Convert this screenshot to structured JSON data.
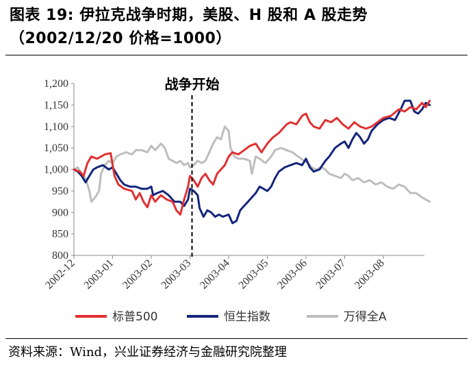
{
  "title_line1": "图表 19: 伊拉克战争时期，美股、H 股和 A 股走势",
  "title_line2": "（2002/12/20 价格=1000）",
  "source": "资料来源：Wind，兴业证券经济与金融研究院整理",
  "colors": {
    "sp500": "#e03030",
    "hsi": "#12247a",
    "wanda": "#bdbdbd"
  },
  "chart_data": {
    "type": "line",
    "x_unit": "months since 2002-12",
    "x_range": [
      0,
      9.3
    ],
    "ylim": [
      800,
      1200
    ],
    "yticks": [
      800,
      850,
      900,
      950,
      1000,
      1050,
      1100,
      1150,
      1200
    ],
    "ytick_labels": [
      "800",
      "850",
      "900",
      "950",
      "1,000",
      "1,050",
      "1,100",
      "1,150",
      "1,200"
    ],
    "xticks": [
      0,
      1,
      2,
      3,
      4,
      5,
      6,
      7,
      8
    ],
    "xtick_labels": [
      "2002-12",
      "2003-01",
      "2003-02",
      "2003-03",
      "2003-04",
      "2003-05",
      "2003-06",
      "2003-07",
      "2003-08"
    ],
    "annotation": {
      "text": "战争开始",
      "x": 3.0
    },
    "legend_position": "bottom",
    "grid": false,
    "series": [
      {
        "name": "标普500",
        "color": "#e03030",
        "points": [
          [
            0,
            1000
          ],
          [
            0.15,
            995
          ],
          [
            0.25,
            985
          ],
          [
            0.35,
            1015
          ],
          [
            0.45,
            1030
          ],
          [
            0.6,
            1025
          ],
          [
            0.8,
            1035
          ],
          [
            0.95,
            1038
          ],
          [
            1.05,
            985
          ],
          [
            1.15,
            965
          ],
          [
            1.3,
            955
          ],
          [
            1.5,
            950
          ],
          [
            1.6,
            930
          ],
          [
            1.7,
            945
          ],
          [
            1.8,
            925
          ],
          [
            1.9,
            912
          ],
          [
            2.0,
            940
          ],
          [
            2.1,
            925
          ],
          [
            2.25,
            940
          ],
          [
            2.4,
            930
          ],
          [
            2.55,
            925
          ],
          [
            2.65,
            905
          ],
          [
            2.75,
            895
          ],
          [
            2.85,
            930
          ],
          [
            2.95,
            960
          ],
          [
            3.0,
            985
          ],
          [
            3.1,
            975
          ],
          [
            3.2,
            960
          ],
          [
            3.3,
            980
          ],
          [
            3.4,
            990
          ],
          [
            3.5,
            975
          ],
          [
            3.6,
            965
          ],
          [
            3.7,
            990
          ],
          [
            3.8,
            1000
          ],
          [
            3.9,
            1010
          ],
          [
            4.0,
            1030
          ],
          [
            4.1,
            1040
          ],
          [
            4.25,
            1035
          ],
          [
            4.4,
            1045
          ],
          [
            4.55,
            1055
          ],
          [
            4.7,
            1060
          ],
          [
            4.85,
            1040
          ],
          [
            5.0,
            1060
          ],
          [
            5.15,
            1075
          ],
          [
            5.3,
            1085
          ],
          [
            5.5,
            1105
          ],
          [
            5.6,
            1110
          ],
          [
            5.75,
            1105
          ],
          [
            5.9,
            1125
          ],
          [
            6.0,
            1130
          ],
          [
            6.1,
            1110
          ],
          [
            6.2,
            1100
          ],
          [
            6.35,
            1095
          ],
          [
            6.5,
            1115
          ],
          [
            6.65,
            1110
          ],
          [
            6.8,
            1120
          ],
          [
            6.95,
            1105
          ],
          [
            7.1,
            1095
          ],
          [
            7.25,
            1110
          ],
          [
            7.4,
            1100
          ],
          [
            7.55,
            1095
          ],
          [
            7.7,
            1100
          ],
          [
            7.85,
            1110
          ],
          [
            8.0,
            1120
          ],
          [
            8.2,
            1125
          ],
          [
            8.4,
            1140
          ],
          [
            8.55,
            1135
          ],
          [
            8.7,
            1145
          ],
          [
            8.85,
            1140
          ],
          [
            9.0,
            1155
          ],
          [
            9.1,
            1145
          ],
          [
            9.2,
            1160
          ]
        ]
      },
      {
        "name": "恒生指数",
        "color": "#12247a",
        "points": [
          [
            0,
            1000
          ],
          [
            0.1,
            995
          ],
          [
            0.2,
            985
          ],
          [
            0.3,
            970
          ],
          [
            0.4,
            985
          ],
          [
            0.5,
            1000
          ],
          [
            0.6,
            1005
          ],
          [
            0.75,
            1010
          ],
          [
            0.9,
            1000
          ],
          [
            1.0,
            1005
          ],
          [
            1.1,
            990
          ],
          [
            1.2,
            975
          ],
          [
            1.3,
            965
          ],
          [
            1.45,
            960
          ],
          [
            1.6,
            960
          ],
          [
            1.75,
            955
          ],
          [
            1.9,
            955
          ],
          [
            2.0,
            960
          ],
          [
            2.05,
            940
          ],
          [
            2.15,
            945
          ],
          [
            2.3,
            950
          ],
          [
            2.45,
            940
          ],
          [
            2.6,
            925
          ],
          [
            2.75,
            925
          ],
          [
            2.85,
            915
          ],
          [
            2.95,
            930
          ],
          [
            3.0,
            955
          ],
          [
            3.1,
            950
          ],
          [
            3.2,
            940
          ],
          [
            3.25,
            910
          ],
          [
            3.35,
            890
          ],
          [
            3.45,
            905
          ],
          [
            3.55,
            900
          ],
          [
            3.65,
            890
          ],
          [
            3.75,
            895
          ],
          [
            3.85,
            890
          ],
          [
            4.0,
            895
          ],
          [
            4.1,
            875
          ],
          [
            4.2,
            880
          ],
          [
            4.3,
            905
          ],
          [
            4.4,
            915
          ],
          [
            4.5,
            925
          ],
          [
            4.6,
            935
          ],
          [
            4.7,
            945
          ],
          [
            4.8,
            960
          ],
          [
            4.9,
            955
          ],
          [
            5.0,
            950
          ],
          [
            5.1,
            960
          ],
          [
            5.2,
            980
          ],
          [
            5.3,
            995
          ],
          [
            5.45,
            1005
          ],
          [
            5.6,
            1010
          ],
          [
            5.75,
            1015
          ],
          [
            5.9,
            1010
          ],
          [
            6.0,
            1025
          ],
          [
            6.1,
            1005
          ],
          [
            6.2,
            995
          ],
          [
            6.35,
            1000
          ],
          [
            6.5,
            1020
          ],
          [
            6.6,
            1030
          ],
          [
            6.75,
            1050
          ],
          [
            6.9,
            1060
          ],
          [
            7.0,
            1065
          ],
          [
            7.1,
            1050
          ],
          [
            7.2,
            1070
          ],
          [
            7.3,
            1085
          ],
          [
            7.4,
            1075
          ],
          [
            7.5,
            1060
          ],
          [
            7.6,
            1070
          ],
          [
            7.7,
            1090
          ],
          [
            7.85,
            1105
          ],
          [
            8.0,
            1115
          ],
          [
            8.15,
            1120
          ],
          [
            8.3,
            1115
          ],
          [
            8.45,
            1140
          ],
          [
            8.55,
            1160
          ],
          [
            8.7,
            1160
          ],
          [
            8.8,
            1135
          ],
          [
            8.9,
            1130
          ],
          [
            9.0,
            1140
          ],
          [
            9.1,
            1155
          ],
          [
            9.2,
            1150
          ]
        ]
      },
      {
        "name": "万得全A",
        "color": "#bdbdbd",
        "points": [
          [
            0,
            1000
          ],
          [
            0.1,
            1005
          ],
          [
            0.2,
            990
          ],
          [
            0.3,
            980
          ],
          [
            0.4,
            950
          ],
          [
            0.45,
            925
          ],
          [
            0.55,
            935
          ],
          [
            0.65,
            950
          ],
          [
            0.7,
            990
          ],
          [
            0.8,
            1010
          ],
          [
            0.9,
            1020
          ],
          [
            1.0,
            1015
          ],
          [
            1.1,
            1030
          ],
          [
            1.2,
            1035
          ],
          [
            1.35,
            1040
          ],
          [
            1.5,
            1035
          ],
          [
            1.6,
            1045
          ],
          [
            1.75,
            1045
          ],
          [
            1.9,
            1040
          ],
          [
            2.0,
            1055
          ],
          [
            2.1,
            1045
          ],
          [
            2.25,
            1060
          ],
          [
            2.35,
            1050
          ],
          [
            2.45,
            1025
          ],
          [
            2.55,
            1020
          ],
          [
            2.65,
            1015
          ],
          [
            2.75,
            1020
          ],
          [
            2.85,
            1010
          ],
          [
            2.95,
            1015
          ],
          [
            3.0,
            1005
          ],
          [
            3.1,
            1010
          ],
          [
            3.2,
            1020
          ],
          [
            3.3,
            1015
          ],
          [
            3.4,
            1020
          ],
          [
            3.5,
            1040
          ],
          [
            3.6,
            1060
          ],
          [
            3.7,
            1075
          ],
          [
            3.8,
            1070
          ],
          [
            3.9,
            1100
          ],
          [
            4.0,
            1090
          ],
          [
            4.05,
            1050
          ],
          [
            4.15,
            1030
          ],
          [
            4.25,
            1025
          ],
          [
            4.4,
            1025
          ],
          [
            4.55,
            1020
          ],
          [
            4.6,
            990
          ],
          [
            4.7,
            1030
          ],
          [
            4.8,
            1025
          ],
          [
            4.95,
            1015
          ],
          [
            5.1,
            1030
          ],
          [
            5.2,
            1045
          ],
          [
            5.35,
            1050
          ],
          [
            5.5,
            1045
          ],
          [
            5.65,
            1040
          ],
          [
            5.8,
            1030
          ],
          [
            5.95,
            1020
          ],
          [
            6.05,
            1015
          ],
          [
            6.15,
            1005
          ],
          [
            6.25,
            1000
          ],
          [
            6.4,
            1005
          ],
          [
            6.5,
            1000
          ],
          [
            6.6,
            990
          ],
          [
            6.75,
            985
          ],
          [
            6.9,
            980
          ],
          [
            7.0,
            990
          ],
          [
            7.1,
            985
          ],
          [
            7.2,
            975
          ],
          [
            7.35,
            980
          ],
          [
            7.5,
            970
          ],
          [
            7.65,
            975
          ],
          [
            7.8,
            965
          ],
          [
            7.95,
            970
          ],
          [
            8.1,
            960
          ],
          [
            8.25,
            955
          ],
          [
            8.4,
            965
          ],
          [
            8.55,
            960
          ],
          [
            8.7,
            945
          ],
          [
            8.85,
            945
          ],
          [
            9.0,
            935
          ],
          [
            9.1,
            930
          ],
          [
            9.2,
            925
          ]
        ]
      }
    ]
  }
}
